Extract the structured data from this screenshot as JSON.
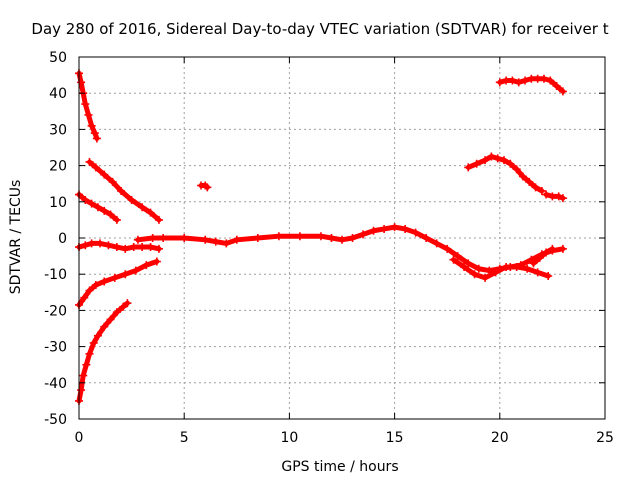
{
  "chart_data": {
    "type": "scatter",
    "title": "Day 280 of 2016, Sidereal Day-to-day VTEC variation (SDTVAR) for receiver t",
    "xlabel": "GPS time / hours",
    "ylabel": "SDTVAR / TECUs",
    "xlim": [
      0,
      25
    ],
    "ylim": [
      -50,
      50
    ],
    "xticks": [
      0,
      5,
      10,
      15,
      20,
      25
    ],
    "yticks": [
      -50,
      -40,
      -30,
      -20,
      -10,
      0,
      10,
      20,
      30,
      40,
      50
    ],
    "grid": true,
    "marker": "+",
    "color": "#ff0000",
    "series": [
      {
        "name": "arc-top-left",
        "x": [
          0.0,
          0.1,
          0.2,
          0.3,
          0.45,
          0.6,
          0.75,
          0.85
        ],
        "y": [
          45.5,
          43,
          40,
          37,
          34,
          31,
          29,
          27.5
        ]
      },
      {
        "name": "arc-20-left",
        "x": [
          0.5,
          0.8,
          1.2,
          1.6,
          2.0,
          2.5,
          3.0,
          3.4,
          3.8
        ],
        "y": [
          21,
          19.5,
          17.5,
          15.5,
          13,
          10.5,
          8.5,
          7,
          5
        ]
      },
      {
        "name": "arc-12-left",
        "x": [
          0.0,
          0.3,
          0.6,
          0.9,
          1.2,
          1.5,
          1.8
        ],
        "y": [
          12,
          10.5,
          9.5,
          8.5,
          7.5,
          6.5,
          5
        ]
      },
      {
        "name": "arc-near-zero-left",
        "x": [
          0.0,
          0.3,
          0.6,
          1.0,
          1.4,
          1.8,
          2.2,
          2.6,
          3.0,
          3.4,
          3.8
        ],
        "y": [
          -2.5,
          -2,
          -1.5,
          -1.5,
          -2,
          -2.5,
          -3,
          -2.5,
          -2.5,
          -2.5,
          -3
        ]
      },
      {
        "name": "arc-minus-twenty-left",
        "x": [
          0.0,
          0.25,
          0.5,
          0.8,
          1.2,
          1.7,
          2.2,
          2.7,
          3.2,
          3.7
        ],
        "y": [
          -18.5,
          -16.5,
          -14.5,
          -13,
          -12,
          -11,
          -10,
          -9,
          -7.5,
          -6.5
        ]
      },
      {
        "name": "arc-bottom-left",
        "x": [
          0.0,
          0.1,
          0.2,
          0.35,
          0.5,
          0.7,
          0.9,
          1.2,
          1.5,
          1.8,
          2.1,
          2.3
        ],
        "y": [
          -45,
          -42,
          -38,
          -35,
          -32,
          -29,
          -27,
          -24.5,
          -22.5,
          -20.5,
          -19,
          -18
        ]
      },
      {
        "name": "main-baseline",
        "x": [
          2.8,
          3.5,
          4.0,
          5.0,
          6.0,
          6.5,
          7.0,
          7.5,
          8.5,
          9.5,
          10.5,
          11.5,
          12.0,
          12.5,
          13.0,
          13.5,
          14.0,
          14.5,
          15.0,
          15.5,
          16.0,
          16.5,
          17.0,
          17.5,
          18.0,
          18.5,
          19.0,
          19.5,
          20.0,
          20.5,
          21.0,
          21.5,
          22.0,
          22.5,
          23.0
        ],
        "y": [
          -0.5,
          0,
          0,
          0,
          -0.5,
          -1,
          -1.5,
          -0.5,
          0,
          0.5,
          0.5,
          0.5,
          0,
          -0.5,
          0,
          1,
          2,
          2.5,
          3,
          2.5,
          1.5,
          0,
          -1.5,
          -3,
          -5,
          -7,
          -8.5,
          -9,
          -8.5,
          -8,
          -7.5,
          -6,
          -4.5,
          -3.5,
          -3
        ]
      },
      {
        "name": "lower-right-cluster",
        "x": [
          17.8,
          18.3,
          18.8,
          19.3,
          19.8,
          20.3,
          20.8,
          21.3,
          21.8,
          22.3
        ],
        "y": [
          -6,
          -8,
          -10,
          -11,
          -9.5,
          -8,
          -8,
          -8.5,
          -9.5,
          -10.5
        ]
      },
      {
        "name": "right-spur",
        "x": [
          21.6,
          21.9,
          22.2,
          22.5
        ],
        "y": [
          -7,
          -5.5,
          -4,
          -3
        ]
      },
      {
        "name": "blip-near-6",
        "x": [
          5.8,
          6.0,
          6.1
        ],
        "y": [
          14.5,
          14.5,
          14
        ]
      },
      {
        "name": "arc-twenty-right",
        "x": [
          18.5,
          18.9,
          19.3,
          19.6,
          19.9,
          20.2,
          20.5,
          20.8,
          21.1,
          21.4,
          21.7,
          22.0
        ],
        "y": [
          19.5,
          20.5,
          21.5,
          22.5,
          22,
          21.5,
          20.5,
          19,
          17,
          15.5,
          14,
          13
        ]
      },
      {
        "name": "arc-twelve-right",
        "x": [
          22.2,
          22.5,
          22.8,
          23.0
        ],
        "y": [
          12,
          11.5,
          11.5,
          11
        ]
      },
      {
        "name": "arc-top-right",
        "x": [
          20.0,
          20.3,
          20.6,
          20.9,
          21.2,
          21.5,
          21.8,
          22.1,
          22.4,
          22.7,
          23.0
        ],
        "y": [
          43,
          43.5,
          43.5,
          43,
          43.5,
          44,
          44,
          44,
          43.5,
          42,
          40.5
        ]
      }
    ]
  }
}
